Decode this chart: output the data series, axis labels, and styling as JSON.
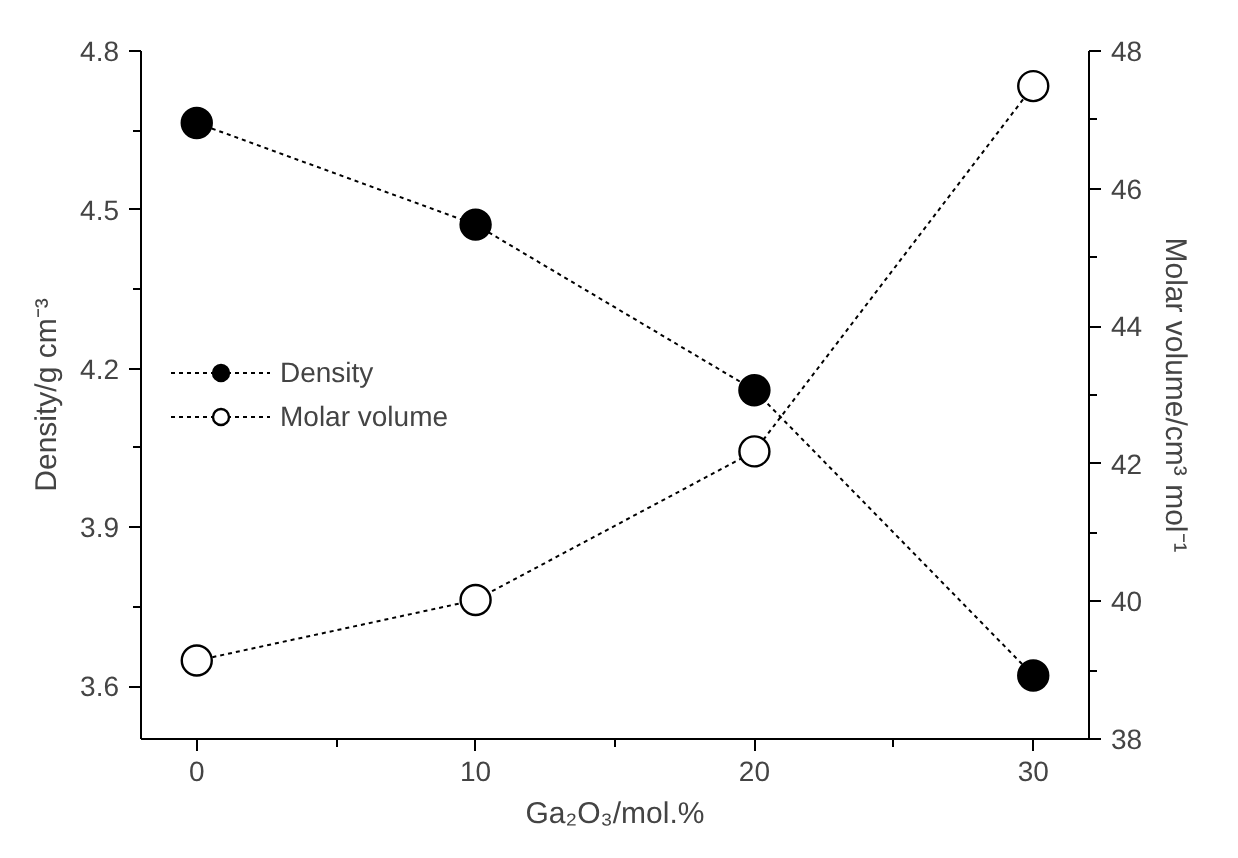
{
  "chart_data": {
    "type": "line",
    "xlabel": "Ga₂O₃/mol.%",
    "ylabel": "Density/g cm⁻³",
    "y2label": "Molar volume/cm³ mol⁻¹",
    "x": [
      0,
      10,
      20,
      30
    ],
    "series": [
      {
        "name": "Density",
        "color": "#000000",
        "values": [
          4.664,
          4.472,
          4.159,
          3.62
        ]
      },
      {
        "name": "Molar volume",
        "color": "#ffffff",
        "axis": "y2",
        "values": [
          39.14,
          40.02,
          42.18,
          47.49
        ]
      }
    ],
    "xlim": [
      -2,
      32
    ],
    "xticks": [
      0,
      {
        "value": 5,
        "label": null
      },
      10,
      {
        "value": 15,
        "label": null
      },
      20,
      {
        "value": 25,
        "label": null
      },
      30
    ],
    "ylim": [
      3.5,
      4.8
    ],
    "yticks": [
      3.6,
      {
        "value": 3.75,
        "label": null
      },
      3.9,
      {
        "value": 4.05,
        "label": null
      },
      4.2,
      {
        "value": 4.35,
        "label": null
      },
      4.5,
      {
        "value": 4.65,
        "label": null
      },
      4.8
    ],
    "y2lim": [
      38,
      48
    ],
    "y2ticks": [
      38,
      {
        "value": 39,
        "label": null
      },
      40,
      {
        "value": 41,
        "label": null
      },
      42,
      {
        "value": 43,
        "label": null
      },
      44,
      {
        "value": 45,
        "label": null
      },
      46,
      {
        "value": 47,
        "label": null
      },
      48
    ],
    "legend": "left",
    "marker": "circle",
    "line_style": "dotted",
    "grid": false
  }
}
